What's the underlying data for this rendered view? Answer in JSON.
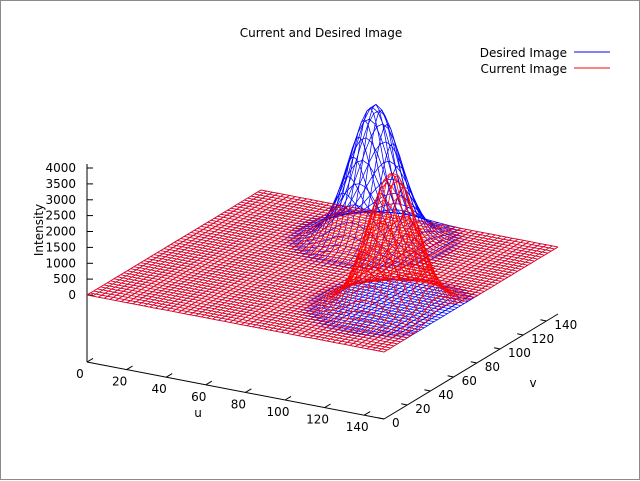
{
  "chart_data": {
    "type": "surface-3d-wireframe",
    "title": "Current and Desired Image",
    "xlabel": "u",
    "ylabel": "v",
    "zlabel": "Intensity",
    "xlim": [
      0,
      150
    ],
    "ylim": [
      0,
      150
    ],
    "zlim": [
      0,
      4000
    ],
    "x_ticks": [
      "0",
      "20",
      "40",
      "60",
      "80",
      "100",
      "120",
      "140"
    ],
    "y_ticks": [
      "0",
      "20",
      "40",
      "60",
      "80",
      "100",
      "120",
      "140"
    ],
    "z_ticks": [
      "0",
      "500",
      "1000",
      "1500",
      "2000",
      "2500",
      "3000",
      "3500",
      "4000"
    ],
    "grid": false,
    "legend_position": "top-right",
    "series": [
      {
        "name": "Desired Image",
        "color": "#0000ff",
        "shape": "gaussian-peak",
        "peak_u": 75,
        "peak_v": 120,
        "peak_intensity": 4000,
        "sigma": 11,
        "base_intensity": 0
      },
      {
        "name": "Current Image",
        "color": "#ff0000",
        "shape": "gaussian-peak",
        "peak_u": 125,
        "peak_v": 50,
        "peak_intensity": 4000,
        "sigma": 11,
        "base_intensity": 0
      }
    ]
  }
}
